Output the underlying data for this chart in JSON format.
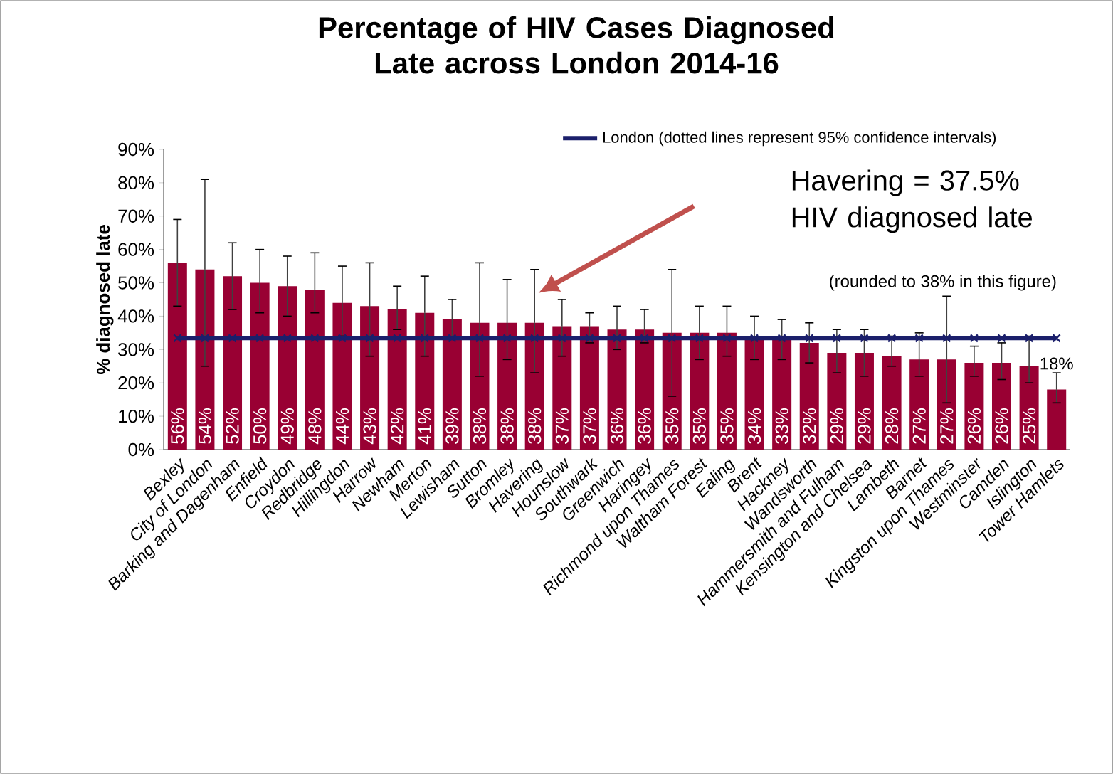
{
  "chart_data": {
    "type": "bar",
    "title": "Percentage of HIV Cases Diagnosed Late across London 2014-16",
    "ylabel": "% diagnosed late",
    "categories": [
      "Bexley",
      "City of London",
      "Barking and Dagenham",
      "Enfield",
      "Croydon",
      "Redbridge",
      "Hillingdon",
      "Harrow",
      "Newham",
      "Merton",
      "Lewisham",
      "Sutton",
      "Bromley",
      "Havering",
      "Hounslow",
      "Southwark",
      "Greenwich",
      "Haringey",
      "Richmond upon Thames",
      "Waltham Forest",
      "Ealing",
      "Brent",
      "Hackney",
      "Wandsworth",
      "Hammersmith and Fulham",
      "Kensington and Chelsea",
      "Lambeth",
      "Barnet",
      "Kingston upon Thames",
      "Westminster",
      "Camden",
      "Islington",
      "Tower Hamlets"
    ],
    "series": [
      {
        "color": "#990033",
        "values": [
          56,
          54,
          52,
          50,
          49,
          48,
          44,
          43,
          42,
          41,
          39,
          38,
          38,
          38,
          37,
          37,
          36,
          36,
          35,
          35,
          35,
          34,
          33,
          32,
          29,
          29,
          28,
          27,
          27,
          26,
          26,
          25,
          18
        ],
        "errors": [
          [
            43,
            69
          ],
          [
            25,
            81
          ],
          [
            42,
            62
          ],
          [
            41,
            60
          ],
          [
            40,
            58
          ],
          [
            41,
            59
          ],
          [
            34,
            55
          ],
          [
            28,
            56
          ],
          [
            36,
            49
          ],
          [
            28,
            52
          ],
          [
            33,
            45
          ],
          [
            22,
            56
          ],
          [
            27,
            51
          ],
          [
            23,
            54
          ],
          [
            28,
            45
          ],
          [
            32,
            41
          ],
          [
            30,
            43
          ],
          [
            32,
            42
          ],
          [
            16,
            54
          ],
          [
            27,
            43
          ],
          [
            28,
            43
          ],
          [
            27,
            40
          ],
          [
            27,
            39
          ],
          [
            26,
            38
          ],
          [
            23,
            36
          ],
          [
            22,
            36
          ],
          [
            25,
            34
          ],
          [
            22,
            35
          ],
          [
            14,
            46
          ],
          [
            22,
            31
          ],
          [
            21,
            32
          ],
          [
            20,
            34
          ],
          [
            14,
            23
          ]
        ],
        "value_labels": [
          "56%",
          "54%",
          "52%",
          "50%",
          "49%",
          "48%",
          "44%",
          "43%",
          "42%",
          "41%",
          "39%",
          "38%",
          "38%",
          "38%",
          "37%",
          "37%",
          "36%",
          "36%",
          "35%",
          "35%",
          "35%",
          "34%",
          "33%",
          "32%",
          "29%",
          "29%",
          "28%",
          "27%",
          "27%",
          "26%",
          "26%",
          "25%",
          "18%"
        ]
      },
      {
        "type": "line",
        "name": "London (dotted lines represent 95% confidence intervals)",
        "color": "#1b1f6b",
        "marker": "cross",
        "values": [
          33.4,
          33.4,
          33.4,
          33.4,
          33.4,
          33.4,
          33.4,
          33.4,
          33.4,
          33.4,
          33.4,
          33.4,
          33.4,
          33.4,
          33.4,
          33.4,
          33.4,
          33.4,
          33.4,
          33.4,
          33.4,
          33.4,
          33.4,
          33.4,
          33.4,
          33.4,
          33.4,
          33.4,
          33.4,
          33.4,
          33.4,
          33.4,
          33.4
        ]
      }
    ],
    "ylim": [
      0,
      90
    ],
    "yticks": [
      {
        "value": 0,
        "label": "0%"
      },
      {
        "value": 10,
        "label": "10%"
      },
      {
        "value": 20,
        "label": "20%"
      },
      {
        "value": 30,
        "label": "30%"
      },
      {
        "value": 40,
        "label": "40%"
      },
      {
        "value": 50,
        "label": "50%"
      },
      {
        "value": 60,
        "label": "60%"
      },
      {
        "value": 70,
        "label": "70%"
      },
      {
        "value": 80,
        "label": "80%"
      },
      {
        "value": 90,
        "label": "90%"
      }
    ],
    "legend": "top",
    "annotations": [
      "Havering = 37.5% HIV diagnosed late",
      "(rounded to 38% in this figure)"
    ]
  }
}
